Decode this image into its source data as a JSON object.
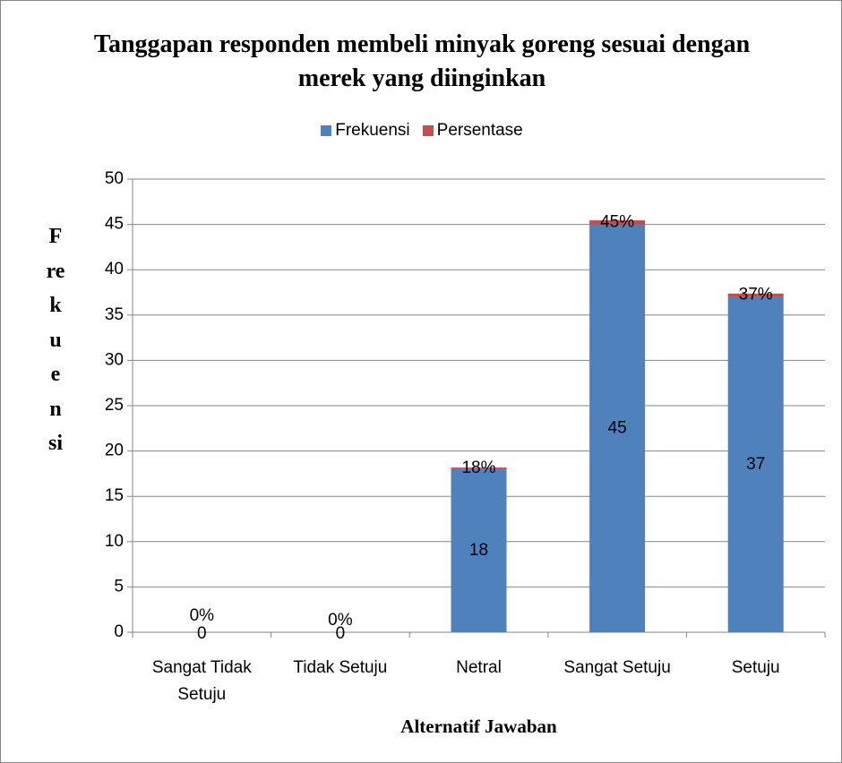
{
  "chart_data": {
    "type": "stacked_bar",
    "title": "Tanggapan responden membeli minyak goreng sesuai dengan merek yang diinginkan",
    "x_label": "Alternatif Jawaban",
    "y_label": "Frekuensi",
    "categories": [
      "Sangat Tidak Setuju",
      "Tidak Setuju",
      "Netral",
      "Sangat Setuju",
      "Setuju"
    ],
    "series": [
      {
        "name": "Frekuensi",
        "color": "#4f81bd",
        "values": [
          0,
          0,
          18,
          45,
          37
        ]
      },
      {
        "name": "Persentase",
        "color": "#c0504d",
        "values": [
          0,
          0,
          0.18,
          0.45,
          0.37
        ],
        "value_labels": [
          "0%",
          "0%",
          "18%",
          "45%",
          "37%"
        ]
      }
    ],
    "ylim": [
      0,
      50
    ],
    "yticks": [
      0,
      5,
      10,
      15,
      20,
      25,
      30,
      35,
      40,
      45,
      50
    ],
    "grid": true,
    "legend": "top"
  }
}
